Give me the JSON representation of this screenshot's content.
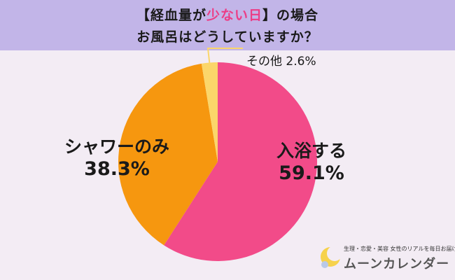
{
  "title": {
    "line1_pre": "【経血量が",
    "line1_highlight": "少ない日",
    "line1_post": "】の場合",
    "line2": "お風呂はどうしていますか？"
  },
  "chart_data": {
    "type": "pie",
    "slices": [
      {
        "label": "入浴する",
        "percent_label": "59.1%",
        "value": 59.1,
        "color": "#f24b89"
      },
      {
        "label": "シャワーのみ",
        "percent_label": "38.3%",
        "value": 38.3,
        "color": "#f6970f"
      },
      {
        "label": "その他",
        "percent_label": "2.6%",
        "value": 2.6,
        "color": "#fbd66a"
      }
    ],
    "start": "12 o'clock",
    "direction": "clockwise"
  },
  "other_label": "その他 2.6%",
  "brand": {
    "tagline": "生理・恋愛・美容 女性のリアルを毎日お届け♪",
    "name": "ムーンカレンダー",
    "icon": "moon-icon"
  },
  "colors": {
    "header_bg": "#c2b5e8",
    "page_bg": "#f3ecf4",
    "highlight": "#ec3d86"
  }
}
